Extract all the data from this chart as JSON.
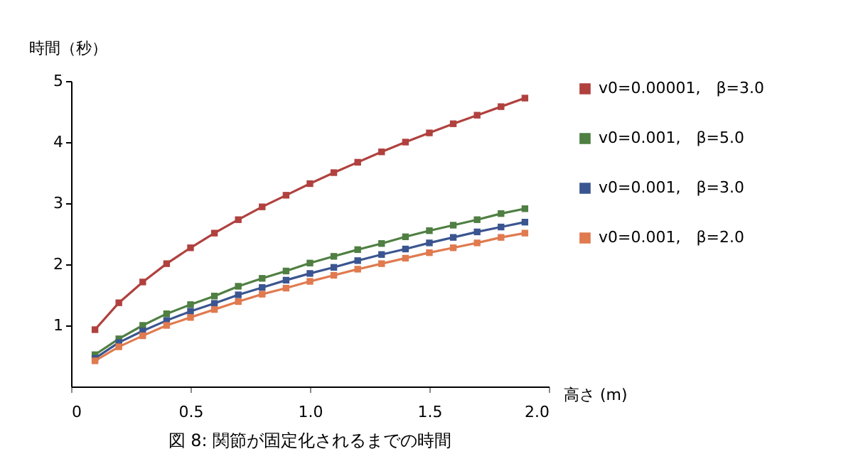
{
  "chart_data": {
    "type": "line",
    "title": "図 8: 関節が固定化されるまでの時間",
    "xlabel": "高さ (m)",
    "ylabel": "時間（秒）",
    "x": [
      0.1,
      0.2,
      0.3,
      0.4,
      0.5,
      0.6,
      0.7,
      0.8,
      0.9,
      1.0,
      1.1,
      1.2,
      1.3,
      1.4,
      1.5,
      1.6,
      1.7,
      1.8,
      1.9
    ],
    "series": [
      {
        "name": "v0=0.00001,　β=3.0",
        "color": "#b0413e",
        "values": [
          0.93,
          1.37,
          1.71,
          2.01,
          2.27,
          2.51,
          2.73,
          2.94,
          3.13,
          3.32,
          3.5,
          3.67,
          3.84,
          4.0,
          4.15,
          4.3,
          4.44,
          4.58,
          4.72
        ]
      },
      {
        "name": "v0=0.001,　β=5.0",
        "color": "#4f7f42",
        "values": [
          0.52,
          0.78,
          1.0,
          1.19,
          1.34,
          1.48,
          1.64,
          1.77,
          1.89,
          2.02,
          2.13,
          2.24,
          2.34,
          2.45,
          2.55,
          2.64,
          2.73,
          2.83,
          2.91
        ]
      },
      {
        "name": "v0=0.001,　β=3.0",
        "color": "#3b5590",
        "values": [
          0.46,
          0.72,
          0.91,
          1.08,
          1.23,
          1.36,
          1.5,
          1.62,
          1.74,
          1.85,
          1.95,
          2.06,
          2.16,
          2.25,
          2.35,
          2.44,
          2.53,
          2.61,
          2.69
        ]
      },
      {
        "name": "v0=0.001,　β=2.0",
        "color": "#e07a4f",
        "values": [
          0.42,
          0.65,
          0.83,
          1.0,
          1.13,
          1.26,
          1.39,
          1.51,
          1.61,
          1.72,
          1.82,
          1.92,
          2.01,
          2.1,
          2.19,
          2.27,
          2.35,
          2.44,
          2.51
        ]
      }
    ],
    "xlim": [
      0,
      2.0
    ],
    "xticks": [
      {
        "value": 0,
        "label": "0"
      },
      {
        "value": 0.5,
        "label": "0.5"
      },
      {
        "value": 1.0,
        "label": "1.0"
      },
      {
        "value": 1.5,
        "label": "1.5"
      },
      {
        "value": 2.0,
        "label": "2.0"
      }
    ],
    "ylim": [
      0,
      5
    ],
    "yticks": [
      1,
      2,
      3,
      4,
      5
    ],
    "grid": false,
    "legend": "right",
    "marker": "square",
    "line_style": "solid"
  }
}
